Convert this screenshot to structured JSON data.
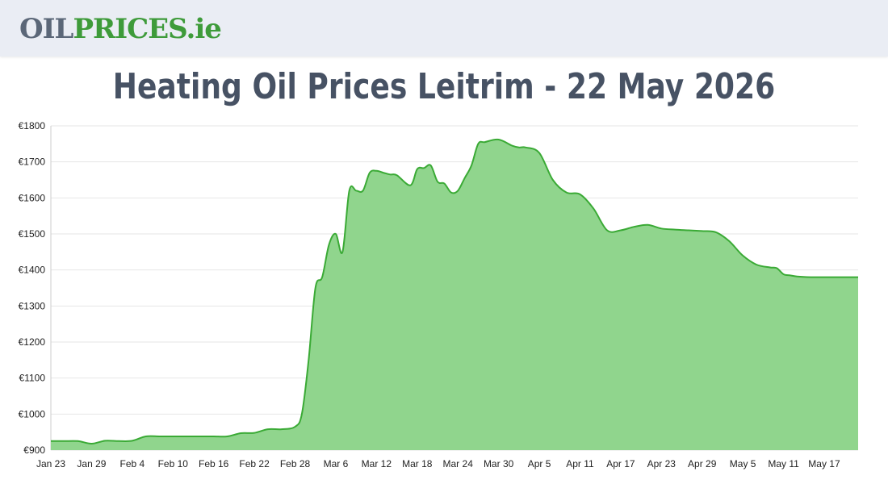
{
  "brand": {
    "logo_part1": "OIL",
    "logo_part2": "PRICES",
    "logo_part3": ".ie"
  },
  "page": {
    "title": "Heating Oil Prices Leitrim - 22 May 2026"
  },
  "colors": {
    "line": "#3aaa35",
    "fill": "#90d58d",
    "grid": "#e6e6e6",
    "text": "#475264"
  },
  "chart_data": {
    "type": "area",
    "title": "Heating Oil Prices Leitrim - 22 May 2026",
    "ylim": [
      900,
      1800
    ],
    "y_ticks": [
      "€900",
      "€1000",
      "€1100",
      "€1200",
      "€1300",
      "€1400",
      "€1500",
      "€1600",
      "€1700",
      "€1800"
    ],
    "x_ticks": [
      "Jan 23",
      "Jan 29",
      "Feb 4",
      "Feb 10",
      "Feb 16",
      "Feb 22",
      "Feb 28",
      "Mar 6",
      "Mar 12",
      "Mar 18",
      "Mar 24",
      "Mar 30",
      "Apr 5",
      "Apr 11",
      "Apr 17",
      "Apr 23",
      "Apr 29",
      "May 5",
      "May 11",
      "May 17"
    ],
    "grid": true,
    "series": [
      {
        "x": [
          "Jan 23",
          "Jan 25",
          "Jan 27",
          "Jan 29",
          "Jan 31",
          "Feb 2",
          "Feb 4",
          "Feb 6",
          "Feb 8",
          "Feb 10",
          "Feb 12",
          "Feb 14",
          "Feb 16",
          "Feb 18",
          "Feb 20",
          "Feb 22",
          "Feb 24",
          "Feb 26",
          "Feb 28",
          "Mar 1",
          "Mar 2",
          "Mar 3",
          "Mar 4",
          "Mar 5",
          "Mar 6",
          "Mar 7",
          "Mar 8",
          "Mar 9",
          "Mar 10",
          "Mar 11",
          "Mar 12",
          "Mar 13",
          "Mar 14",
          "Mar 15",
          "Mar 17",
          "Mar 18",
          "Mar 19",
          "Mar 20",
          "Mar 21",
          "Mar 22",
          "Mar 23",
          "Mar 24",
          "Mar 25",
          "Mar 26",
          "Mar 27",
          "Mar 28",
          "Mar 30",
          "Apr 1",
          "Apr 2",
          "Apr 3",
          "Apr 5",
          "Apr 7",
          "Apr 9",
          "Apr 11",
          "Apr 13",
          "Apr 15",
          "Apr 17",
          "Apr 19",
          "Apr 21",
          "Apr 23",
          "Apr 25",
          "Apr 27",
          "Apr 29",
          "May 1",
          "May 3",
          "May 5",
          "May 7",
          "May 9",
          "May 10",
          "May 11",
          "May 12",
          "May 13",
          "May 15",
          "May 16",
          "May 17",
          "May 19",
          "May 21",
          "May 22"
        ],
        "values": [
          925,
          925,
          925,
          918,
          926,
          925,
          926,
          938,
          938,
          938,
          938,
          938,
          938,
          938,
          947,
          948,
          958,
          958,
          965,
          1000,
          1150,
          1350,
          1380,
          1470,
          1500,
          1450,
          1620,
          1620,
          1620,
          1670,
          1675,
          1670,
          1665,
          1663,
          1635,
          1680,
          1683,
          1690,
          1645,
          1640,
          1615,
          1620,
          1655,
          1690,
          1750,
          1755,
          1762,
          1745,
          1740,
          1740,
          1725,
          1650,
          1615,
          1610,
          1570,
          1510,
          1510,
          1520,
          1525,
          1515,
          1512,
          1510,
          1508,
          1505,
          1480,
          1440,
          1415,
          1407,
          1405,
          1388,
          1385,
          1382,
          1380,
          1380,
          1380,
          1380,
          1380,
          1380
        ]
      }
    ]
  }
}
